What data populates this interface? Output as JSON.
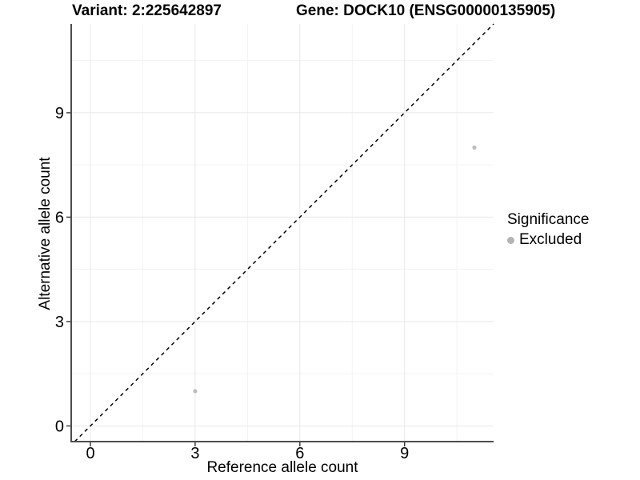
{
  "title": {
    "variant": "Variant: 2:225642897",
    "gene": "Gene: DOCK10 (ENSG00000135905)"
  },
  "axes": {
    "x": {
      "label": "Reference allele count",
      "tick_labels": [
        "0",
        "3",
        "6",
        "9"
      ]
    },
    "y": {
      "label": "Alternative allele count",
      "tick_labels": [
        "0",
        "3",
        "6",
        "9"
      ]
    }
  },
  "legend": {
    "title": "Significance",
    "items": [
      {
        "label": "Excluded",
        "color": "#b4b4b4",
        "marker": "circle-icon"
      }
    ]
  },
  "chart_data": {
    "type": "scatter",
    "title": "Variant: 2:225642897   Gene: DOCK10 (ENSG00000135905)",
    "xlabel": "Reference allele count",
    "ylabel": "Alternative allele count",
    "xlim": [
      -0.55,
      11.55
    ],
    "ylim": [
      -0.45,
      11.55
    ],
    "x_ticks": [
      0,
      3,
      6,
      9
    ],
    "y_ticks": [
      0,
      3,
      6,
      9
    ],
    "x_minor_gridlines": [
      1.5,
      4.5,
      7.5,
      10.5
    ],
    "y_minor_gridlines": [
      1.5,
      4.5,
      7.5,
      10.5
    ],
    "grid": true,
    "legend_position": "right",
    "series": [
      {
        "name": "Excluded",
        "color": "#bdbdbd",
        "points": [
          {
            "x": 3,
            "y": 1
          },
          {
            "x": 11,
            "y": 8
          }
        ]
      }
    ],
    "reference_line": {
      "type": "identity",
      "style": "dashed",
      "color": "#000000"
    },
    "style": {
      "axis_line_color": "#4d4d4d",
      "tick_color": "#333333",
      "major_grid_color": "#e8e8e8",
      "minor_grid_color": "#f3f3f3",
      "tick_label_color": "#000000"
    }
  }
}
